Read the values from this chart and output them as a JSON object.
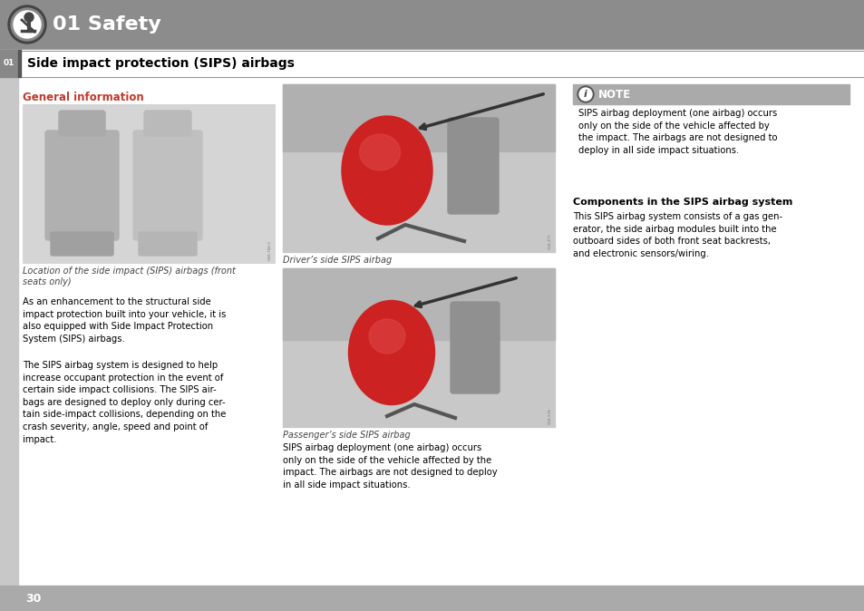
{
  "bg_color": "#ffffff",
  "header_bg": "#8c8c8c",
  "header_text": "01 Safety",
  "header_text_color": "#ffffff",
  "header_font_size": 16,
  "section_label": "01",
  "section_title": "Side impact protection (SIPS) airbags",
  "section_title_size": 10,
  "subsection_title": "General information",
  "subsection_title_color": "#c0392b",
  "subsection_title_size": 8.5,
  "caption1": "Location of the side impact (SIPS) airbags (front\nseats only)",
  "caption2": "Driver’s side SIPS airbag",
  "caption3": "Passenger’s side SIPS airbag",
  "para1": "As an enhancement to the structural side\nimpact protection built into your vehicle, it is\nalso equipped with Side Impact Protection\nSystem (SIPS) airbags.",
  "para2": "The SIPS airbag system is designed to help\nincrease occupant protection in the event of\ncertain side impact collisions. The SIPS air-\nbags are designed to deploy only during cer-\ntain side-impact collisions, depending on the\ncrash severity, angle, speed and point of\nimpact.",
  "para3": "SIPS airbag deployment (one airbag) occurs\nonly on the side of the vehicle affected by the\nimpact. The airbags are not designed to deploy\nin all side impact situations.",
  "note_title": "NOTE",
  "note_text": "SIPS airbag deployment (one airbag) occurs\nonly on the side of the vehicle affected by\nthe impact. The airbags are not designed to\ndeploy in all side impact situations.",
  "components_title": "Components in the SIPS airbag system",
  "components_text": "This SIPS airbag system consists of a gas gen-\nerator, the side airbag modules built into the\noutboard sides of both front seat backrests,\nand electronic sensors/wiring.",
  "page_number": "30",
  "note_border_color": "#aaaaaa",
  "note_bg_color": "#ffffff",
  "note_header_bg": "#aaaaaa",
  "sidebar_color": "#c8c8c8",
  "sidebar_label_bg": "#888888",
  "bottom_bar_color": "#aaaaaa",
  "img_bg": "#c0c0c0",
  "img_border": "#999999"
}
